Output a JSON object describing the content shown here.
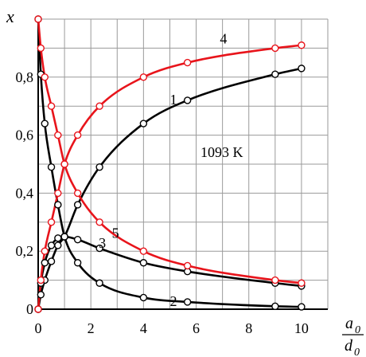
{
  "chart_data": {
    "type": "line",
    "title": "",
    "xlim": [
      0,
      11
    ],
    "ylim": [
      0,
      1
    ],
    "x_ticks": [
      0,
      2,
      4,
      6,
      8,
      10
    ],
    "x_tick_labels": [
      "0",
      "2",
      "4",
      "6",
      "8",
      "10"
    ],
    "y_ticks": [
      0,
      0.2,
      0.4,
      0.6,
      0.8
    ],
    "y_tick_labels": [
      "0",
      "0,2",
      "0,4",
      "0,6",
      "0,8"
    ],
    "grid": true,
    "ylabel": "x",
    "xlabel_num": "a",
    "xlabel_num_sub": "0",
    "xlabel_den": "d",
    "xlabel_den_sub": "0",
    "annotation": "1093 K",
    "series": [
      {
        "name": "1",
        "color": "#000000",
        "x": [
          0,
          0.1,
          0.25,
          0.5,
          0.75,
          1.0,
          1.5,
          2.33,
          4.0,
          5.67,
          9.0,
          10.0
        ],
        "y": [
          0,
          0.05,
          0.1,
          0.165,
          0.22,
          0.25,
          0.36,
          0.49,
          0.64,
          0.72,
          0.81,
          0.83
        ]
      },
      {
        "name": "2",
        "color": "#000000",
        "x": [
          0,
          0.1,
          0.25,
          0.5,
          0.75,
          1.0,
          1.5,
          2.33,
          4.0,
          5.67,
          9.0,
          10.0
        ],
        "y": [
          1.0,
          0.81,
          0.64,
          0.49,
          0.36,
          0.25,
          0.16,
          0.09,
          0.04,
          0.025,
          0.01,
          0.008
        ]
      },
      {
        "name": "3",
        "color": "#000000",
        "x": [
          0,
          0.1,
          0.25,
          0.5,
          0.75,
          1.0,
          1.5,
          2.33,
          4.0,
          5.67,
          9.0,
          10.0
        ],
        "y": [
          0,
          0.09,
          0.16,
          0.22,
          0.245,
          0.25,
          0.24,
          0.21,
          0.16,
          0.13,
          0.09,
          0.08
        ]
      },
      {
        "name": "4",
        "color": "#e8141b",
        "x": [
          0,
          0.1,
          0.25,
          0.5,
          0.75,
          1.0,
          1.5,
          2.33,
          4.0,
          5.67,
          9.0,
          10.0
        ],
        "y": [
          0,
          0.1,
          0.2,
          0.3,
          0.4,
          0.5,
          0.6,
          0.7,
          0.8,
          0.85,
          0.9,
          0.91
        ]
      },
      {
        "name": "5",
        "color": "#e8141b",
        "x": [
          0,
          0.1,
          0.25,
          0.5,
          0.75,
          1.0,
          1.5,
          2.33,
          4.0,
          5.67,
          9.0,
          10.0
        ],
        "y": [
          1.0,
          0.9,
          0.8,
          0.7,
          0.6,
          0.5,
          0.4,
          0.3,
          0.2,
          0.15,
          0.1,
          0.09
        ]
      }
    ]
  }
}
